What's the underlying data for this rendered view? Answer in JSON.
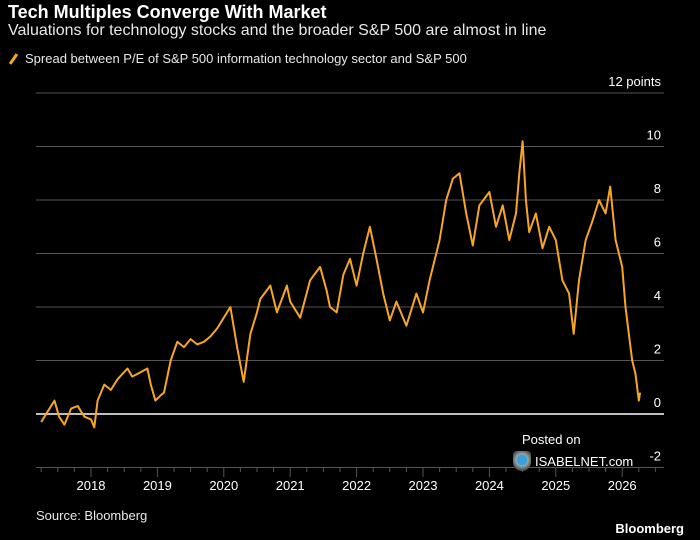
{
  "title": "Tech Multiples Converge With Market",
  "subtitle": "Valuations for technology stocks and the broader S&P 500 are almost in line",
  "source": "Source: Bloomberg",
  "brand": "Bloomberg",
  "watermark": {
    "posted": "Posted on",
    "site": "ISABELNET.com"
  },
  "colors": {
    "line": "#f7a623",
    "grid": "#555555",
    "zero": "#bfbfbf",
    "background": "#000000"
  },
  "chart_data": {
    "type": "line",
    "title": "Tech Multiples Converge With Market",
    "ylabel": "",
    "xlabel": "",
    "y_unit_label": "12 points",
    "ylim": [
      -2,
      12
    ],
    "xlim": [
      2017.2,
      2026.5
    ],
    "grid": true,
    "legend_placement": "top-left",
    "x_ticks": [
      "2018",
      "2019",
      "2020",
      "2021",
      "2022",
      "2023",
      "2024",
      "2025",
      "2026"
    ],
    "y_ticks": [
      "12 points",
      "10",
      "8",
      "6",
      "4",
      "2",
      "0",
      "-2"
    ],
    "series": [
      {
        "name": "Spread between P/E of S&P 500 information technology sector and S&P 500",
        "points": [
          [
            2017.25,
            -0.3
          ],
          [
            2017.35,
            0.1
          ],
          [
            2017.45,
            0.5
          ],
          [
            2017.52,
            -0.1
          ],
          [
            2017.6,
            -0.4
          ],
          [
            2017.7,
            0.2
          ],
          [
            2017.8,
            0.3
          ],
          [
            2017.9,
            -0.1
          ],
          [
            2018.0,
            -0.2
          ],
          [
            2018.05,
            -0.5
          ],
          [
            2018.1,
            0.5
          ],
          [
            2018.2,
            1.1
          ],
          [
            2018.3,
            0.9
          ],
          [
            2018.4,
            1.3
          ],
          [
            2018.55,
            1.7
          ],
          [
            2018.62,
            1.4
          ],
          [
            2018.7,
            1.5
          ],
          [
            2018.85,
            1.7
          ],
          [
            2018.9,
            1.1
          ],
          [
            2018.97,
            0.5
          ],
          [
            2019.05,
            0.7
          ],
          [
            2019.1,
            0.8
          ],
          [
            2019.2,
            2.0
          ],
          [
            2019.3,
            2.7
          ],
          [
            2019.4,
            2.5
          ],
          [
            2019.5,
            2.8
          ],
          [
            2019.6,
            2.6
          ],
          [
            2019.7,
            2.7
          ],
          [
            2019.8,
            2.9
          ],
          [
            2019.9,
            3.2
          ],
          [
            2020.0,
            3.6
          ],
          [
            2020.1,
            4.0
          ],
          [
            2020.2,
            2.5
          ],
          [
            2020.3,
            1.2
          ],
          [
            2020.4,
            3.0
          ],
          [
            2020.5,
            3.8
          ],
          [
            2020.55,
            4.3
          ],
          [
            2020.7,
            4.8
          ],
          [
            2020.8,
            3.8
          ],
          [
            2020.95,
            4.8
          ],
          [
            2021.0,
            4.2
          ],
          [
            2021.15,
            3.6
          ],
          [
            2021.3,
            5.0
          ],
          [
            2021.45,
            5.5
          ],
          [
            2021.55,
            4.6
          ],
          [
            2021.6,
            4.0
          ],
          [
            2021.7,
            3.8
          ],
          [
            2021.8,
            5.2
          ],
          [
            2021.9,
            5.8
          ],
          [
            2022.0,
            4.8
          ],
          [
            2022.1,
            6.0
          ],
          [
            2022.2,
            7.0
          ],
          [
            2022.3,
            5.8
          ],
          [
            2022.4,
            4.5
          ],
          [
            2022.5,
            3.5
          ],
          [
            2022.6,
            4.2
          ],
          [
            2022.75,
            3.3
          ],
          [
            2022.9,
            4.5
          ],
          [
            2023.0,
            3.8
          ],
          [
            2023.1,
            5.0
          ],
          [
            2023.25,
            6.5
          ],
          [
            2023.35,
            8.0
          ],
          [
            2023.45,
            8.8
          ],
          [
            2023.55,
            9.0
          ],
          [
            2023.65,
            7.5
          ],
          [
            2023.75,
            6.3
          ],
          [
            2023.85,
            7.8
          ],
          [
            2024.0,
            8.3
          ],
          [
            2024.1,
            7.0
          ],
          [
            2024.2,
            7.8
          ],
          [
            2024.3,
            6.5
          ],
          [
            2024.4,
            7.5
          ],
          [
            2024.45,
            9.0
          ],
          [
            2024.5,
            10.2
          ],
          [
            2024.55,
            8.0
          ],
          [
            2024.6,
            6.8
          ],
          [
            2024.7,
            7.5
          ],
          [
            2024.8,
            6.2
          ],
          [
            2024.9,
            7.0
          ],
          [
            2025.0,
            6.5
          ],
          [
            2025.1,
            5.0
          ],
          [
            2025.2,
            4.5
          ],
          [
            2025.27,
            3.0
          ],
          [
            2025.35,
            5.0
          ],
          [
            2025.45,
            6.5
          ],
          [
            2025.55,
            7.2
          ],
          [
            2025.65,
            8.0
          ],
          [
            2025.75,
            7.5
          ],
          [
            2025.82,
            8.5
          ],
          [
            2025.9,
            6.5
          ],
          [
            2026.0,
            5.5
          ],
          [
            2026.05,
            4.0
          ],
          [
            2026.1,
            3.0
          ],
          [
            2026.15,
            2.0
          ],
          [
            2026.2,
            1.5
          ],
          [
            2026.25,
            0.5
          ],
          [
            2026.27,
            0.8
          ]
        ]
      }
    ]
  }
}
